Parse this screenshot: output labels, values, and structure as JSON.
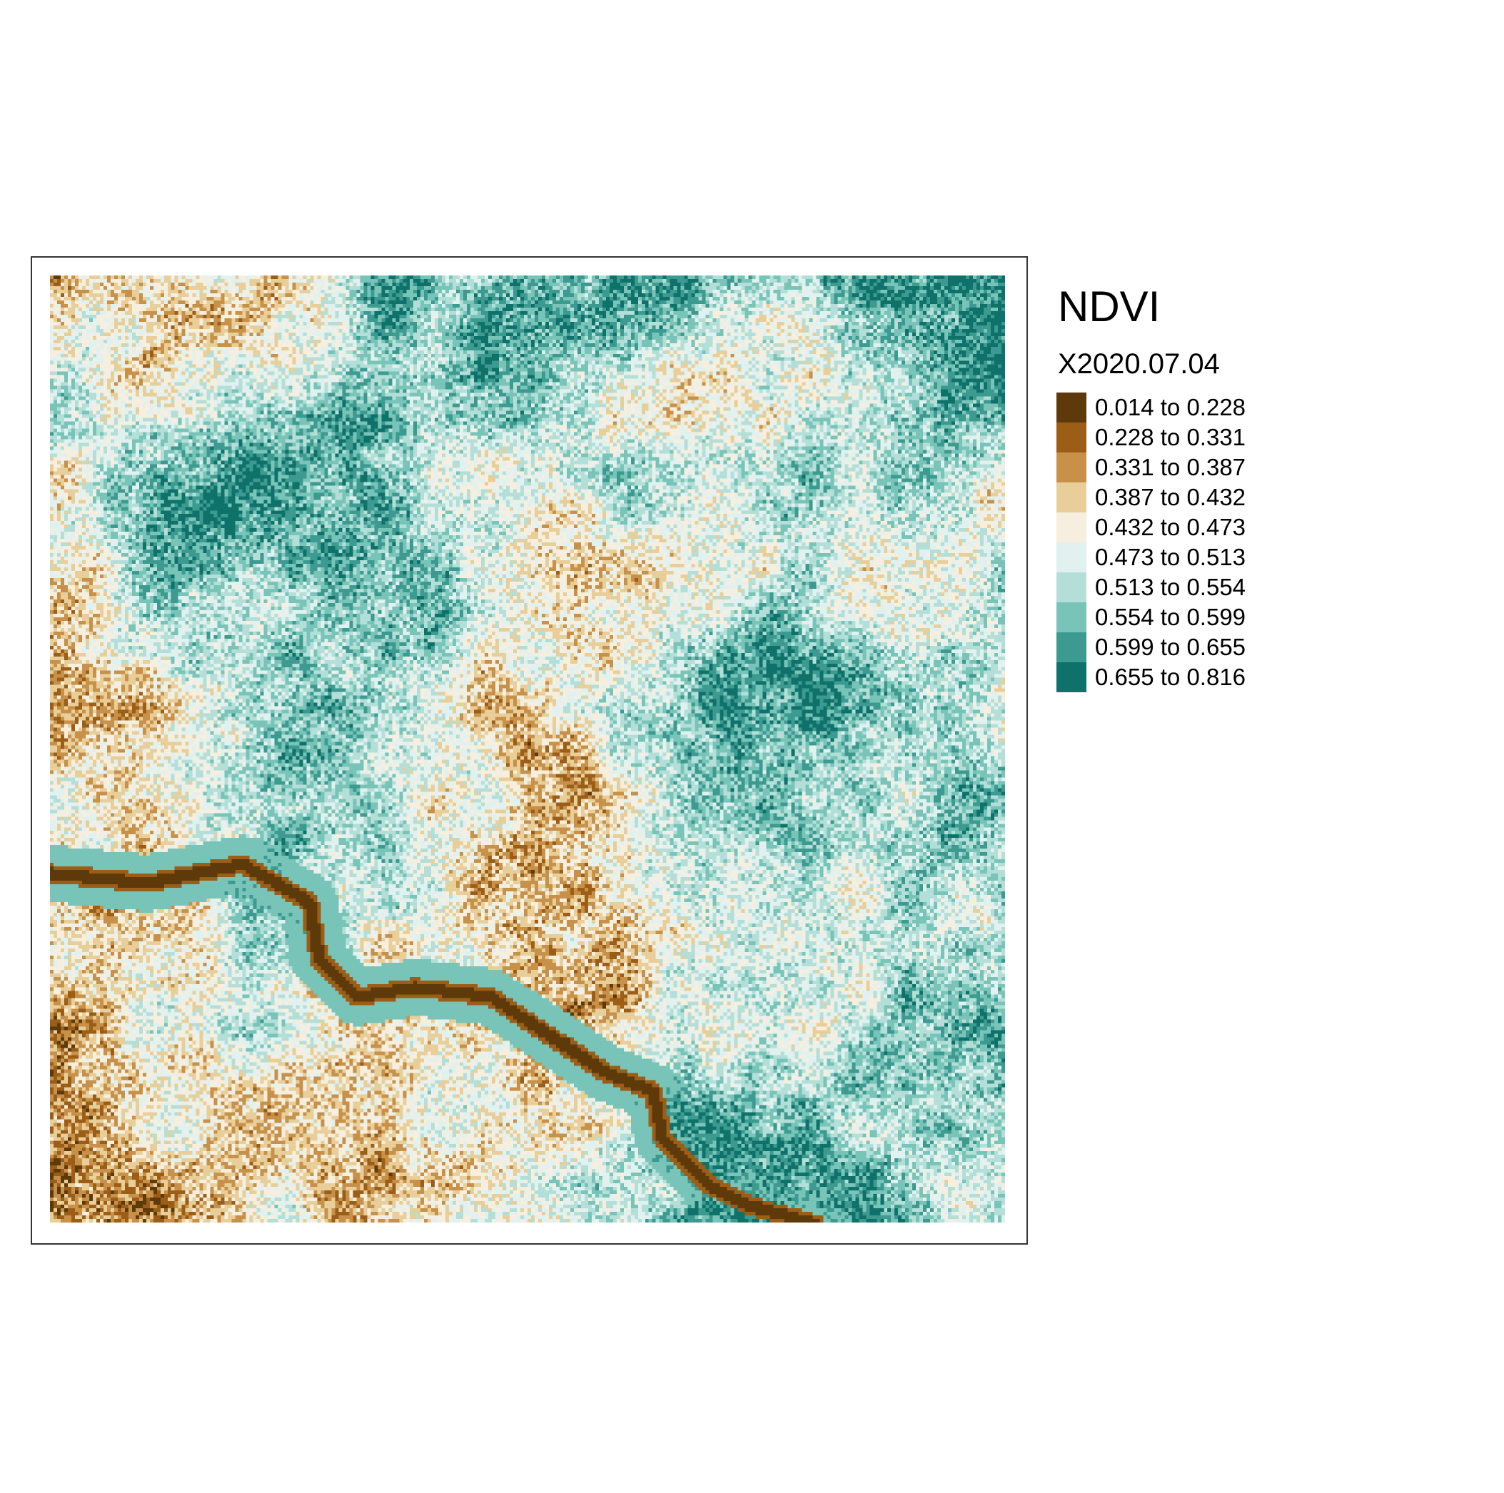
{
  "legend": {
    "title": "NDVI",
    "subtitle": "X2020.07.04",
    "classes": [
      {
        "label": "0.014 to 0.228",
        "color": "#5e3a0b"
      },
      {
        "label": "0.228 to 0.331",
        "color": "#9c5d17"
      },
      {
        "label": "0.331 to 0.387",
        "color": "#c8914a"
      },
      {
        "label": "0.387 to 0.432",
        "color": "#e8cf99"
      },
      {
        "label": "0.432 to 0.473",
        "color": "#f6efdf"
      },
      {
        "label": "0.473 to 0.513",
        "color": "#e1f1ef"
      },
      {
        "label": "0.513 to 0.554",
        "color": "#b4dfd8"
      },
      {
        "label": "0.554 to 0.599",
        "color": "#78c4b8"
      },
      {
        "label": "0.599 to 0.655",
        "color": "#3c9a90"
      },
      {
        "label": "0.655 to 0.816",
        "color": "#0e716a"
      }
    ]
  }
}
